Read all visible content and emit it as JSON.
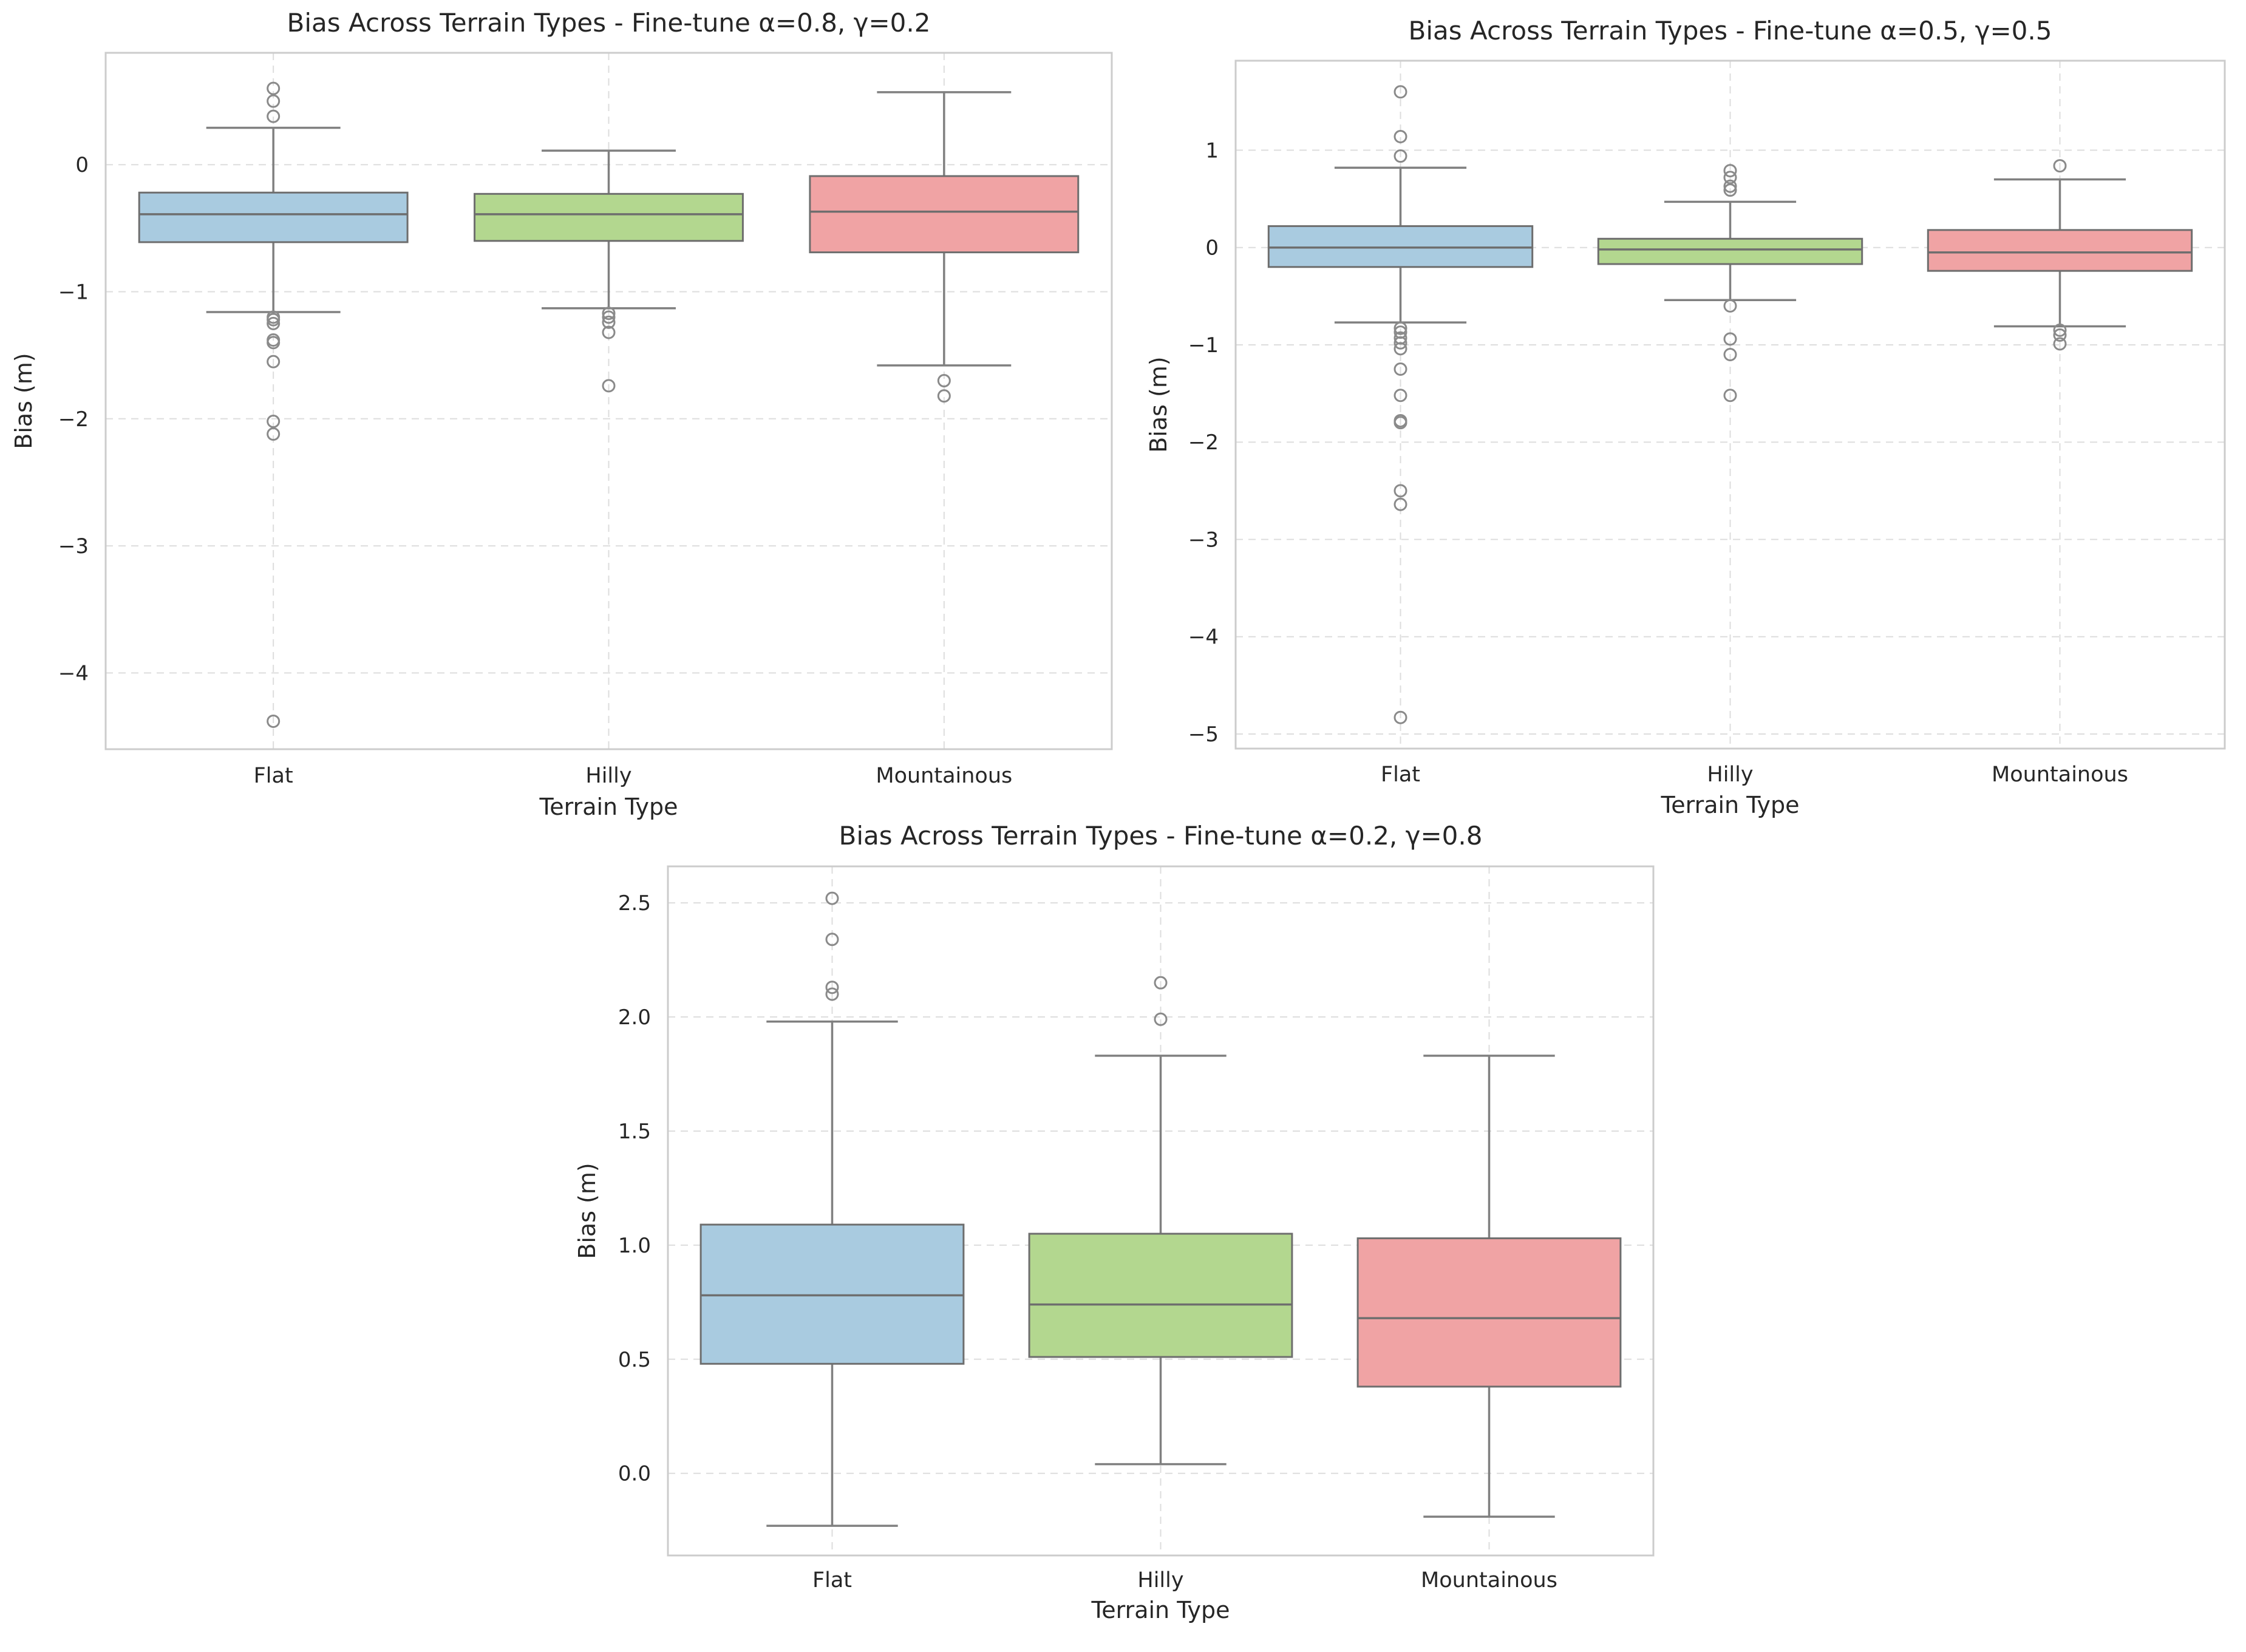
{
  "figure": {
    "panels": 3,
    "layout": "two charts on top row, one chart centered on bottom row",
    "style": {
      "background": "#ffffff",
      "frame_color": "#cccccc",
      "grid_color": "#dddddd",
      "text_color": "#262626",
      "box_edge_color": "#6e6e6e",
      "whisker_color": "#808080",
      "box_colors": [
        "#a9cbe0",
        "#b3d78f",
        "#f0a3a4"
      ]
    }
  },
  "chart_data": [
    {
      "type": "box",
      "title": "Bias Across Terrain Types - Fine-tune α=0.8, γ=0.2",
      "xlabel": "Terrain Type",
      "ylabel": "Bias (m)",
      "categories": [
        "Flat",
        "Hilly",
        "Mountainous"
      ],
      "ylim": [
        -4.6,
        0.88
      ],
      "yticks": [
        0,
        -1,
        -2,
        -3,
        -4
      ],
      "ytick_labels": [
        "0",
        "−1",
        "−2",
        "−3",
        "−4"
      ],
      "grid": true,
      "boxes": [
        {
          "category": "Flat",
          "whislo": -1.16,
          "q1": -0.61,
          "med": -0.39,
          "q3": -0.22,
          "whishi": 0.29,
          "fliers": [
            0.6,
            0.5,
            0.38,
            -1.2,
            -1.22,
            -1.25,
            -1.38,
            -1.4,
            -1.55,
            -2.02,
            -2.12,
            -4.38
          ]
        },
        {
          "category": "Hilly",
          "whislo": -1.13,
          "q1": -0.6,
          "med": -0.39,
          "q3": -0.23,
          "whishi": 0.11,
          "fliers": [
            -1.17,
            -1.2,
            -1.24,
            -1.32,
            -1.74
          ]
        },
        {
          "category": "Mountainous",
          "whislo": -1.58,
          "q1": -0.69,
          "med": -0.37,
          "q3": -0.09,
          "whishi": 0.57,
          "fliers": [
            -1.7,
            -1.82
          ]
        }
      ]
    },
    {
      "type": "box",
      "title": "Bias Across Terrain Types - Fine-tune α=0.5, γ=0.5",
      "xlabel": "Terrain Type",
      "ylabel": "Bias (m)",
      "categories": [
        "Flat",
        "Hilly",
        "Mountainous"
      ],
      "ylim": [
        -5.15,
        1.92
      ],
      "yticks": [
        1,
        0,
        -1,
        -2,
        -3,
        -4,
        -5
      ],
      "ytick_labels": [
        "1",
        "0",
        "−1",
        "−2",
        "−3",
        "−4",
        "−5"
      ],
      "grid": true,
      "boxes": [
        {
          "category": "Flat",
          "whislo": -0.77,
          "q1": -0.2,
          "med": 0.0,
          "q3": 0.22,
          "whishi": 0.82,
          "fliers": [
            1.6,
            1.14,
            0.94,
            -0.83,
            -0.87,
            -0.93,
            -0.98,
            -1.04,
            -1.25,
            -1.52,
            -1.78,
            -1.8,
            -2.5,
            -2.64,
            -4.83
          ]
        },
        {
          "category": "Hilly",
          "whislo": -0.54,
          "q1": -0.17,
          "med": -0.02,
          "q3": 0.09,
          "whishi": 0.47,
          "fliers": [
            0.79,
            0.72,
            0.63,
            0.59,
            -0.6,
            -0.94,
            -1.1,
            -1.52
          ]
        },
        {
          "category": "Mountainous",
          "whislo": -0.81,
          "q1": -0.24,
          "med": -0.05,
          "q3": 0.18,
          "whishi": 0.7,
          "fliers": [
            0.84,
            -0.85,
            -0.9,
            -0.99
          ]
        }
      ]
    },
    {
      "type": "box",
      "title": "Bias Across Terrain Types - Fine-tune α=0.2, γ=0.8",
      "xlabel": "Terrain Type",
      "ylabel": "Bias (m)",
      "categories": [
        "Flat",
        "Hilly",
        "Mountainous"
      ],
      "ylim": [
        -0.36,
        2.66
      ],
      "yticks": [
        0.0,
        0.5,
        1.0,
        1.5,
        2.0,
        2.5
      ],
      "ytick_labels": [
        "0.0",
        "0.5",
        "1.0",
        "1.5",
        "2.0",
        "2.5"
      ],
      "grid": true,
      "boxes": [
        {
          "category": "Flat",
          "whislo": -0.23,
          "q1": 0.48,
          "med": 0.78,
          "q3": 1.09,
          "whishi": 1.98,
          "fliers": [
            2.52,
            2.34,
            2.13,
            2.1
          ]
        },
        {
          "category": "Hilly",
          "whislo": 0.04,
          "q1": 0.51,
          "med": 0.74,
          "q3": 1.05,
          "whishi": 1.83,
          "fliers": [
            2.15,
            1.99
          ]
        },
        {
          "category": "Mountainous",
          "whislo": -0.19,
          "q1": 0.38,
          "med": 0.68,
          "q3": 1.03,
          "whishi": 1.83,
          "fliers": []
        }
      ]
    }
  ]
}
